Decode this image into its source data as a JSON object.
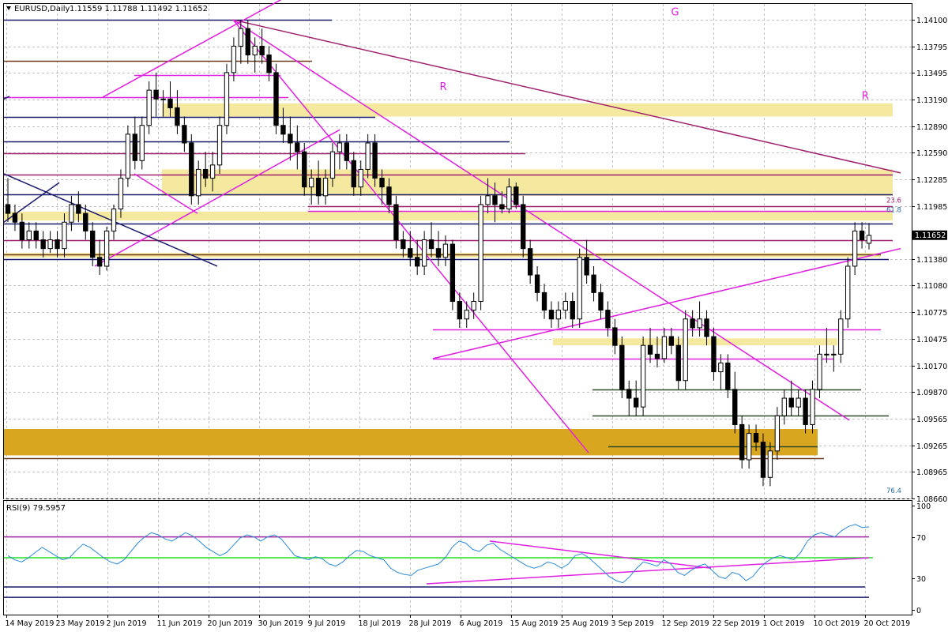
{
  "header": {
    "symbol_timeframe": "EURUSD,Daily",
    "ohlc": "1.11559 1.11788 1.11492 1.11652"
  },
  "chart_data": [
    {
      "type": "candlestick",
      "title": "EURUSD,Daily",
      "subtitle": "1.11559 1.11788 1.11492 1.11652",
      "ylim": [
        1.0866,
        1.1428
      ],
      "y_ticks": [
        "1.14100",
        "1.13795",
        "1.13495",
        "1.13190",
        "1.12890",
        "1.12590",
        "1.12285",
        "1.11985",
        "1.11380",
        "1.11080",
        "1.10775",
        "1.10475",
        "1.10170",
        "1.09870",
        "1.09565",
        "1.09265",
        "1.08965",
        "1.08660"
      ],
      "current_price": "1.11652",
      "x_ticks": [
        "14 May 2019",
        "23 May 2019",
        "2 Jun 2019",
        "11 Jun 2019",
        "20 Jun 2019",
        "30 Jun 2019",
        "9 Jul 2019",
        "18 Jul 2019",
        "28 Jul 2019",
        "6 Aug 2019",
        "15 Aug 2019",
        "25 Aug 2019",
        "3 Sep 2019",
        "12 Sep 2019",
        "22 Sep 2019",
        "1 Oct 2019",
        "10 Oct 2019",
        "20 Oct 2019"
      ],
      "candles": [
        [
          1.12,
          1.123,
          1.118,
          1.119
        ],
        [
          1.119,
          1.12,
          1.117,
          1.118
        ],
        [
          1.118,
          1.119,
          1.115,
          1.116
        ],
        [
          1.116,
          1.118,
          1.115,
          1.117
        ],
        [
          1.117,
          1.118,
          1.115,
          1.116
        ],
        [
          1.116,
          1.117,
          1.114,
          1.115
        ],
        [
          1.115,
          1.117,
          1.1145,
          1.116
        ],
        [
          1.116,
          1.117,
          1.114,
          1.115
        ],
        [
          1.115,
          1.119,
          1.114,
          1.118
        ],
        [
          1.118,
          1.121,
          1.117,
          1.12
        ],
        [
          1.12,
          1.1215,
          1.118,
          1.119
        ],
        [
          1.119,
          1.12,
          1.116,
          1.117
        ],
        [
          1.117,
          1.118,
          1.113,
          1.114
        ],
        [
          1.114,
          1.116,
          1.112,
          1.113
        ],
        [
          1.113,
          1.1175,
          1.1125,
          1.117
        ],
        [
          1.117,
          1.12,
          1.116,
          1.1195
        ],
        [
          1.1195,
          1.124,
          1.1185,
          1.123
        ],
        [
          1.123,
          1.129,
          1.122,
          1.128
        ],
        [
          1.128,
          1.13,
          1.124,
          1.125
        ],
        [
          1.125,
          1.13,
          1.124,
          1.129
        ],
        [
          1.129,
          1.134,
          1.128,
          1.133
        ],
        [
          1.133,
          1.135,
          1.13,
          1.132
        ],
        [
          1.132,
          1.133,
          1.13,
          1.132
        ],
        [
          1.132,
          1.134,
          1.13,
          1.131
        ],
        [
          1.131,
          1.133,
          1.128,
          1.129
        ],
        [
          1.129,
          1.13,
          1.126,
          1.127
        ],
        [
          1.127,
          1.128,
          1.12,
          1.121
        ],
        [
          1.121,
          1.125,
          1.12,
          1.124
        ],
        [
          1.124,
          1.126,
          1.122,
          1.123
        ],
        [
          1.123,
          1.126,
          1.1215,
          1.1245
        ],
        [
          1.1245,
          1.13,
          1.1235,
          1.129
        ],
        [
          1.129,
          1.136,
          1.128,
          1.135
        ],
        [
          1.135,
          1.139,
          1.134,
          1.138
        ],
        [
          1.138,
          1.141,
          1.136,
          1.14
        ],
        [
          1.14,
          1.141,
          1.136,
          1.137
        ],
        [
          1.137,
          1.139,
          1.135,
          1.138
        ],
        [
          1.138,
          1.14,
          1.136,
          1.137
        ],
        [
          1.137,
          1.138,
          1.134,
          1.135
        ],
        [
          1.135,
          1.136,
          1.128,
          1.129
        ],
        [
          1.129,
          1.131,
          1.127,
          1.128
        ],
        [
          1.128,
          1.13,
          1.125,
          1.127
        ],
        [
          1.127,
          1.129,
          1.124,
          1.126
        ],
        [
          1.126,
          1.127,
          1.121,
          1.122
        ],
        [
          1.122,
          1.124,
          1.12,
          1.123
        ],
        [
          1.123,
          1.125,
          1.12,
          1.121
        ],
        [
          1.121,
          1.124,
          1.12,
          1.123
        ],
        [
          1.123,
          1.127,
          1.122,
          1.126
        ],
        [
          1.126,
          1.128,
          1.124,
          1.127
        ],
        [
          1.127,
          1.128,
          1.124,
          1.125
        ],
        [
          1.125,
          1.126,
          1.121,
          1.122
        ],
        [
          1.122,
          1.125,
          1.121,
          1.124
        ],
        [
          1.124,
          1.128,
          1.123,
          1.127
        ],
        [
          1.127,
          1.128,
          1.122,
          1.123
        ],
        [
          1.123,
          1.124,
          1.12,
          1.122
        ],
        [
          1.122,
          1.123,
          1.119,
          1.12
        ],
        [
          1.12,
          1.121,
          1.115,
          1.116
        ],
        [
          1.116,
          1.117,
          1.114,
          1.115
        ],
        [
          1.115,
          1.117,
          1.113,
          1.114
        ],
        [
          1.114,
          1.116,
          1.112,
          1.113
        ],
        [
          1.113,
          1.117,
          1.112,
          1.116
        ],
        [
          1.116,
          1.118,
          1.114,
          1.115
        ],
        [
          1.115,
          1.117,
          1.113,
          1.114
        ],
        [
          1.114,
          1.1165,
          1.113,
          1.1155
        ],
        [
          1.1155,
          1.116,
          1.108,
          1.109
        ],
        [
          1.109,
          1.11,
          1.106,
          1.107
        ],
        [
          1.107,
          1.109,
          1.106,
          1.108
        ],
        [
          1.108,
          1.11,
          1.107,
          1.109
        ],
        [
          1.109,
          1.121,
          1.108,
          1.12
        ],
        [
          1.12,
          1.123,
          1.119,
          1.121
        ],
        [
          1.121,
          1.1225,
          1.118,
          1.12
        ],
        [
          1.12,
          1.1215,
          1.119,
          1.1195
        ],
        [
          1.1195,
          1.123,
          1.119,
          1.122
        ],
        [
          1.122,
          1.1225,
          1.1195,
          1.12
        ],
        [
          1.12,
          1.121,
          1.114,
          1.115
        ],
        [
          1.115,
          1.116,
          1.111,
          1.112
        ],
        [
          1.112,
          1.113,
          1.109,
          1.11
        ],
        [
          1.11,
          1.111,
          1.107,
          1.108
        ],
        [
          1.108,
          1.109,
          1.106,
          1.107
        ],
        [
          1.107,
          1.109,
          1.106,
          1.108
        ],
        [
          1.108,
          1.11,
          1.107,
          1.109
        ],
        [
          1.109,
          1.11,
          1.106,
          1.107
        ],
        [
          1.107,
          1.115,
          1.106,
          1.114
        ],
        [
          1.114,
          1.116,
          1.111,
          1.112
        ],
        [
          1.112,
          1.113,
          1.109,
          1.11
        ],
        [
          1.11,
          1.111,
          1.107,
          1.108
        ],
        [
          1.108,
          1.109,
          1.105,
          1.106
        ],
        [
          1.106,
          1.107,
          1.103,
          1.104
        ],
        [
          1.104,
          1.105,
          1.098,
          1.099
        ],
        [
          1.099,
          1.1,
          1.096,
          1.098
        ],
        [
          1.098,
          1.1,
          1.096,
          1.097
        ],
        [
          1.097,
          1.105,
          1.096,
          1.104
        ],
        [
          1.104,
          1.106,
          1.102,
          1.103
        ],
        [
          1.103,
          1.105,
          1.1015,
          1.1025
        ],
        [
          1.1025,
          1.106,
          1.102,
          1.105
        ],
        [
          1.105,
          1.106,
          1.103,
          1.104
        ],
        [
          1.104,
          1.105,
          1.099,
          1.1
        ],
        [
          1.1,
          1.108,
          1.099,
          1.107
        ],
        [
          1.107,
          1.108,
          1.105,
          1.106
        ],
        [
          1.106,
          1.109,
          1.105,
          1.107
        ],
        [
          1.107,
          1.108,
          1.104,
          1.105
        ],
        [
          1.105,
          1.106,
          1.1,
          1.101
        ],
        [
          1.101,
          1.103,
          1.099,
          1.102
        ],
        [
          1.102,
          1.103,
          1.098,
          1.099
        ],
        [
          1.099,
          1.101,
          1.094,
          1.095
        ],
        [
          1.095,
          1.096,
          1.09,
          1.091
        ],
        [
          1.091,
          1.095,
          1.09,
          1.094
        ],
        [
          1.094,
          1.095,
          1.092,
          1.093
        ],
        [
          1.093,
          1.094,
          1.088,
          1.089
        ],
        [
          1.089,
          1.093,
          1.088,
          1.092
        ],
        [
          1.092,
          1.097,
          1.091,
          1.096
        ],
        [
          1.096,
          1.099,
          1.095,
          1.098
        ],
        [
          1.098,
          1.1,
          1.096,
          1.097
        ],
        [
          1.097,
          1.099,
          1.096,
          1.098
        ],
        [
          1.098,
          1.099,
          1.094,
          1.095
        ],
        [
          1.095,
          1.1,
          1.094,
          1.099
        ],
        [
          1.099,
          1.104,
          1.098,
          1.103
        ],
        [
          1.103,
          1.106,
          1.102,
          1.103
        ],
        [
          1.103,
          1.104,
          1.101,
          1.103
        ],
        [
          1.103,
          1.108,
          1.102,
          1.107
        ],
        [
          1.107,
          1.114,
          1.106,
          1.113
        ],
        [
          1.113,
          1.118,
          1.112,
          1.117
        ],
        [
          1.117,
          1.118,
          1.115,
          1.116
        ],
        [
          1.1156,
          1.1179,
          1.1149,
          1.1165
        ]
      ],
      "zones": [
        {
          "y1": 1.1315,
          "y2": 1.13,
          "color": "#f5e9a0"
        },
        {
          "y1": 1.124,
          "y2": 1.121,
          "color": "#f5e9a0"
        },
        {
          "y1": 1.1192,
          "y2": 1.1182,
          "color": "#f5e9a0"
        },
        {
          "y1": 1.1145,
          "y2": 1.114,
          "color": "#f5e9a0"
        },
        {
          "y1": 1.1048,
          "y2": 1.104,
          "color": "#f5e9a0"
        },
        {
          "y1": 1.0945,
          "y2": 1.0915,
          "color": "#d9a620"
        }
      ],
      "annotations": [
        {
          "text": "G",
          "x": 0.735,
          "y": 1.1415
        },
        {
          "text": "R",
          "x": 0.48,
          "y": 1.133
        },
        {
          "text": "R",
          "x": 0.945,
          "y": 1.132
        }
      ],
      "fib_labels": [
        "23.6",
        "61.8",
        "76.4"
      ]
    },
    {
      "type": "line",
      "title": "RSI(9) 79.5957",
      "ylim": [
        0,
        100
      ],
      "y_ticks": [
        "100",
        "70",
        "30",
        "0"
      ],
      "levels": [
        70,
        50,
        30
      ],
      "series": [
        {
          "values": [
            52,
            48,
            46,
            50,
            55,
            60,
            56,
            52,
            48,
            50,
            57,
            63,
            60,
            55,
            50,
            46,
            44,
            48,
            56,
            64,
            70,
            74,
            72,
            68,
            66,
            70,
            74,
            71,
            66,
            60,
            56,
            52,
            55,
            62,
            69,
            72,
            70,
            66,
            70,
            72,
            68,
            60,
            52,
            50,
            48,
            51,
            49,
            44,
            42,
            46,
            52,
            57,
            56,
            52,
            50,
            48,
            40,
            36,
            34,
            33,
            38,
            40,
            42,
            44,
            50,
            60,
            66,
            64,
            58,
            56,
            62,
            64,
            58,
            54,
            50,
            46,
            42,
            40,
            42,
            46,
            44,
            40,
            44,
            52,
            54,
            50,
            44,
            38,
            32,
            28,
            26,
            32,
            40,
            46,
            44,
            42,
            48,
            44,
            36,
            33,
            38,
            42,
            44,
            38,
            32,
            30,
            36,
            34,
            28,
            32,
            40,
            46,
            50,
            52,
            50,
            48,
            55,
            66,
            72,
            74,
            72,
            70,
            76,
            80,
            82,
            79,
            79.6
          ]
        }
      ]
    }
  ]
}
